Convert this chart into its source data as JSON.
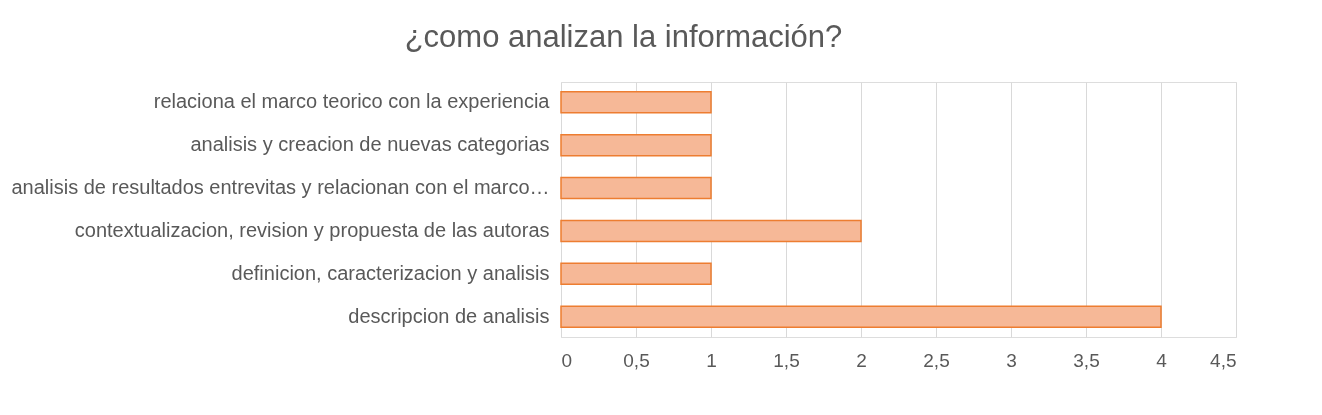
{
  "chart_data": {
    "type": "bar",
    "orientation": "horizontal",
    "title": "¿como analizan  la información?",
    "categories": [
      "relaciona el marco teorico con la experiencia",
      "analisis y creacion de nuevas categorias",
      "analisis de resultados entrevitas y relacionan con el marco…",
      "contextualizacion, revision y propuesta de las autoras",
      "definicion, caracterizacion y analisis",
      "descripcion de analisis"
    ],
    "values": [
      1,
      1,
      1,
      2,
      1,
      4
    ],
    "color": "#f6b897",
    "xlim": [
      0,
      4.5
    ],
    "xticks": [
      0,
      {
        "value": 0.5,
        "label": "0,5"
      },
      1,
      {
        "value": 1.5,
        "label": "1,5"
      },
      2,
      {
        "value": 2.5,
        "label": "2,5"
      },
      3,
      {
        "value": 3.5,
        "label": "3,5"
      },
      4,
      {
        "value": 4.5,
        "label": "4,5"
      }
    ],
    "grid": "x"
  }
}
